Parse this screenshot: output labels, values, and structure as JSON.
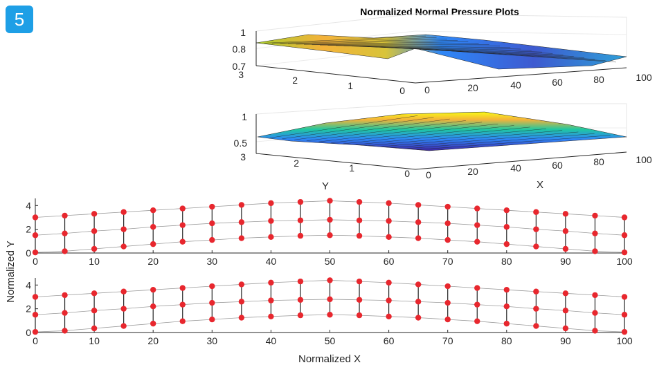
{
  "badge": "5",
  "chart_data": [
    {
      "type": "surface",
      "title": "Normalized Normal Pressure Plots",
      "xlabel": "",
      "ylabel": "",
      "x_ticks": [
        "0",
        "20",
        "40",
        "60",
        "80",
        "100"
      ],
      "y_ticks": [
        "0",
        "1",
        "2",
        "3"
      ],
      "z_ticks": [
        "0.7",
        "0.8",
        "1"
      ],
      "xlim": [
        0,
        100
      ],
      "ylim": [
        0,
        3
      ],
      "zlim": [
        0.7,
        1
      ],
      "colormap": [
        "#3e26a8",
        "#2e87f7",
        "#1fc8a0",
        "#a8cd2c",
        "#f4b23a",
        "#f9fb15"
      ]
    },
    {
      "type": "surface",
      "title": "",
      "xlabel": "X",
      "ylabel": "Y",
      "x_ticks": [
        "0",
        "20",
        "40",
        "60",
        "80",
        "100"
      ],
      "y_ticks": [
        "0",
        "1",
        "2",
        "3"
      ],
      "z_ticks": [
        "0.5",
        "1"
      ],
      "xlim": [
        0,
        100
      ],
      "ylim": [
        0,
        3
      ],
      "zlim": [
        0.4,
        1
      ],
      "colormap": [
        "#3e26a8",
        "#2e87f7",
        "#1fc8a0",
        "#a8cd2c",
        "#f4b23a",
        "#f9fb15"
      ]
    },
    {
      "type": "scatter",
      "title": "",
      "xlabel": "",
      "ylabel": "Normalized Y",
      "x_ticks": [
        "0",
        "10",
        "20",
        "30",
        "40",
        "50",
        "60",
        "70",
        "80",
        "90",
        "100"
      ],
      "y_ticks": [
        "0",
        "2",
        "4"
      ],
      "xlim": [
        0,
        100
      ],
      "ylim": [
        0,
        4.6
      ],
      "x": [
        0,
        5,
        10,
        15,
        20,
        25,
        30,
        35,
        40,
        45,
        50,
        55,
        60,
        65,
        70,
        75,
        80,
        85,
        90,
        95,
        100
      ],
      "series": [
        {
          "values": [
            0.05,
            0.15,
            0.35,
            0.55,
            0.75,
            0.95,
            1.1,
            1.25,
            1.35,
            1.45,
            1.5,
            1.45,
            1.35,
            1.25,
            1.1,
            0.95,
            0.75,
            0.55,
            0.35,
            0.15,
            0.05
          ]
        },
        {
          "values": [
            1.5,
            1.65,
            1.85,
            2.0,
            2.2,
            2.35,
            2.5,
            2.6,
            2.7,
            2.75,
            2.8,
            2.75,
            2.7,
            2.6,
            2.5,
            2.35,
            2.2,
            2.0,
            1.85,
            1.65,
            1.5
          ]
        },
        {
          "values": [
            3.0,
            3.15,
            3.3,
            3.45,
            3.6,
            3.75,
            3.9,
            4.05,
            4.2,
            4.3,
            4.4,
            4.3,
            4.2,
            4.05,
            3.9,
            3.75,
            3.6,
            3.45,
            3.3,
            3.15,
            3.0
          ]
        }
      ],
      "marker_color": "#e8272e"
    },
    {
      "type": "scatter",
      "title": "",
      "xlabel": "Normalized X",
      "ylabel": "",
      "x_ticks": [
        "0",
        "10",
        "20",
        "30",
        "40",
        "50",
        "60",
        "70",
        "80",
        "90",
        "100"
      ],
      "y_ticks": [
        "0",
        "2",
        "4"
      ],
      "xlim": [
        0,
        100
      ],
      "ylim": [
        0,
        4.6
      ],
      "x": [
        0,
        5,
        10,
        15,
        20,
        25,
        30,
        35,
        40,
        45,
        50,
        55,
        60,
        65,
        70,
        75,
        80,
        85,
        90,
        95,
        100
      ],
      "series": [
        {
          "values": [
            0.05,
            0.15,
            0.35,
            0.55,
            0.75,
            0.95,
            1.1,
            1.25,
            1.35,
            1.45,
            1.5,
            1.45,
            1.35,
            1.25,
            1.1,
            0.95,
            0.75,
            0.55,
            0.35,
            0.15,
            0.05
          ]
        },
        {
          "values": [
            1.5,
            1.65,
            1.85,
            2.0,
            2.2,
            2.35,
            2.5,
            2.6,
            2.7,
            2.75,
            2.8,
            2.75,
            2.7,
            2.6,
            2.5,
            2.35,
            2.2,
            2.0,
            1.85,
            1.65,
            1.5
          ]
        },
        {
          "values": [
            3.0,
            3.15,
            3.3,
            3.45,
            3.6,
            3.75,
            3.9,
            4.05,
            4.2,
            4.3,
            4.4,
            4.3,
            4.2,
            4.05,
            3.9,
            3.75,
            3.6,
            3.45,
            3.3,
            3.15,
            3.0
          ]
        }
      ],
      "marker_color": "#e8272e"
    }
  ]
}
